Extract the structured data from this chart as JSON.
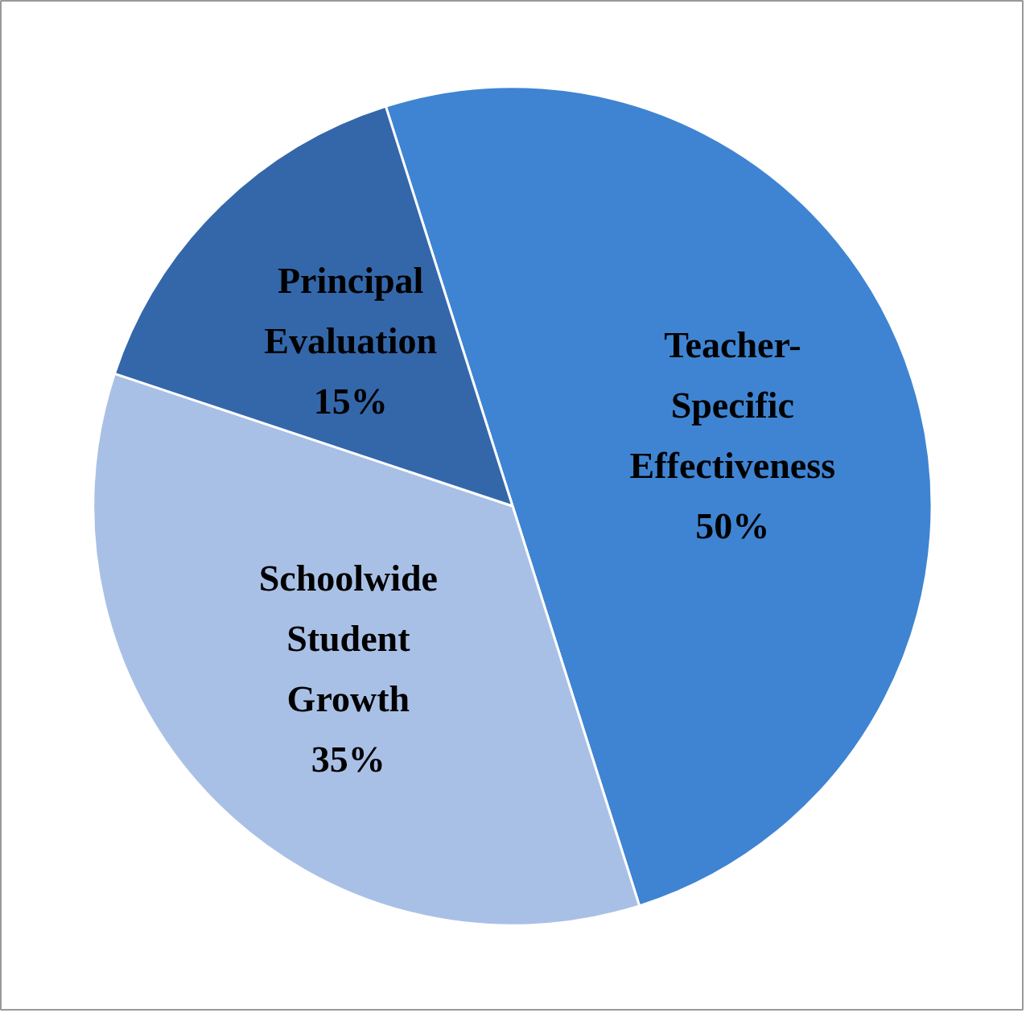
{
  "chart_data": {
    "type": "pie",
    "categories": [
      "Teacher-Specific Effectiveness",
      "Schoolwide Student Growth",
      "Principal Evaluation"
    ],
    "values": [
      50,
      35,
      15
    ],
    "colors": [
      "#3f84d2",
      "#a9c0e6",
      "#3467aa"
    ],
    "value_labels": [
      "50%",
      "35%",
      "15%"
    ],
    "legend": false
  }
}
